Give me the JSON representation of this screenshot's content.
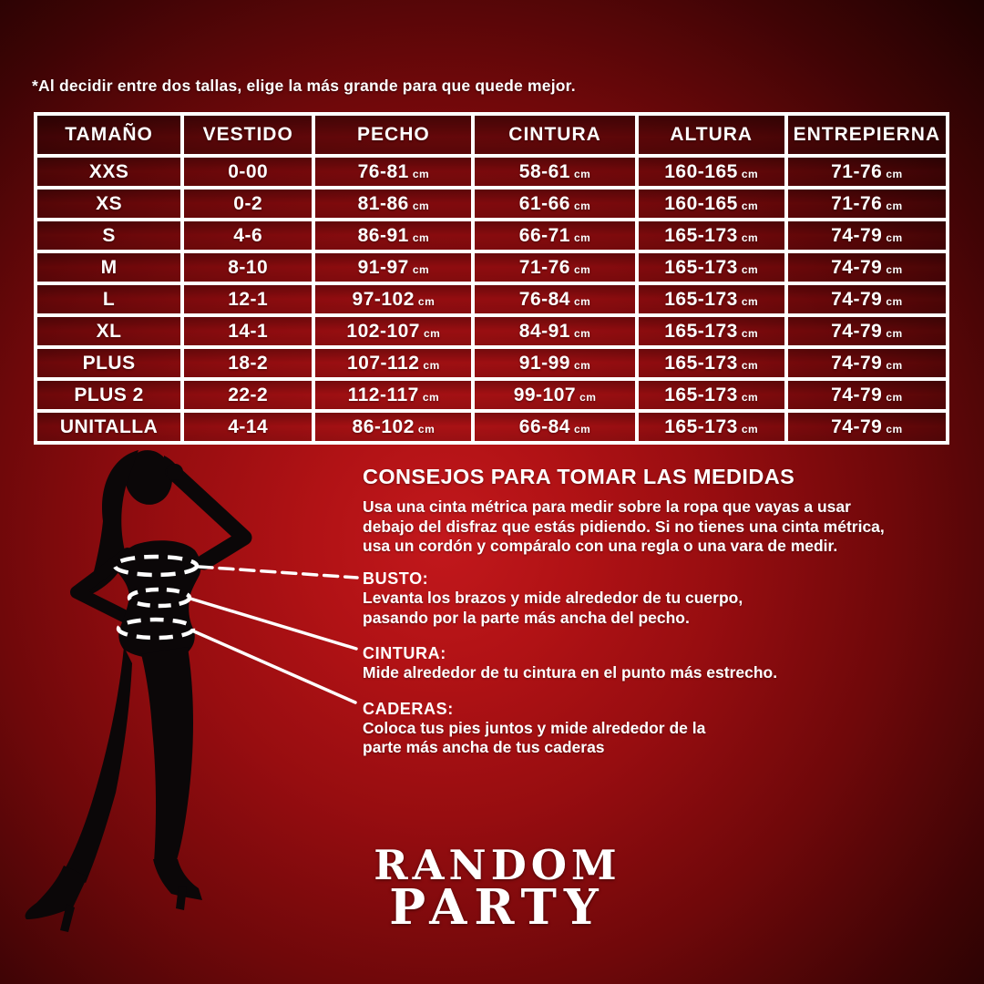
{
  "note": "*Al decidir entre dos tallas, elige la más grande para que quede mejor.",
  "size_table": {
    "headers": [
      "TAMAÑO",
      "VESTIDO",
      "PECHO",
      "CINTURA",
      "ALTURA",
      "ENTREPIERNA"
    ],
    "unit": "cm",
    "unit_columns": [
      2,
      3,
      4,
      5
    ],
    "rows": [
      [
        "XXS",
        "0-00",
        "76-81",
        "58-61",
        "160-165",
        "71-76"
      ],
      [
        "XS",
        "0-2",
        "81-86",
        "61-66",
        "160-165",
        "71-76"
      ],
      [
        "S",
        "4-6",
        "86-91",
        "66-71",
        "165-173",
        "74-79"
      ],
      [
        "M",
        "8-10",
        "91-97",
        "71-76",
        "165-173",
        "74-79"
      ],
      [
        "L",
        "12-1",
        "97-102",
        "76-84",
        "165-173",
        "74-79"
      ],
      [
        "XL",
        "14-1",
        "102-107",
        "84-91",
        "165-173",
        "74-79"
      ],
      [
        "PLUS",
        "18-2",
        "107-112",
        "91-99",
        "165-173",
        "74-79"
      ],
      [
        "PLUS 2",
        "22-2",
        "112-117",
        "99-107",
        "165-173",
        "74-79"
      ],
      [
        "UNITALLA",
        "4-14",
        "86-102",
        "66-84",
        "165-173",
        "74-79"
      ]
    ]
  },
  "tips": {
    "heading": "CONSEJOS PARA TOMAR LAS MEDIDAS",
    "intro_lines": [
      "Usa una cinta métrica para medir sobre la ropa que vayas a usar",
      "debajo del disfraz que estás pidiendo. Si no tienes una cinta métrica,",
      "usa un cordón y compáralo con una regla o una vara de medir."
    ],
    "sections": [
      {
        "title": "BUSTO:",
        "lines": [
          "Levanta los brazos y mide alrededor de tu cuerpo,",
          "pasando por la parte más ancha del pecho."
        ]
      },
      {
        "title": "CINTURA:",
        "lines": [
          "Mide alrededor de tu cintura en el punto más estrecho."
        ]
      },
      {
        "title": "CADERAS:",
        "lines": [
          "Coloca tus pies juntos y mide alrededor de la",
          "parte más ancha de tus caderas"
        ]
      }
    ]
  },
  "diagram": {
    "figure": "woman-silhouette",
    "markers": [
      "busto",
      "cintura",
      "caderas"
    ],
    "line_color": "#ffffff",
    "silhouette_color": "#0b0708"
  },
  "logo": {
    "line1": "RANDOM",
    "line2": "PARTY"
  },
  "colors": {
    "background_center": "#c2181c",
    "background_edge": "#120101",
    "text": "#ffffff",
    "table_border": "#ffffff"
  }
}
